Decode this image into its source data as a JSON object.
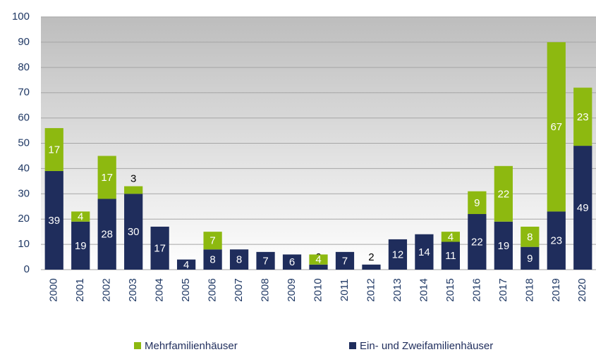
{
  "chart_data": {
    "type": "stacked-bar",
    "categories": [
      "2000",
      "2001",
      "2002",
      "2003",
      "2004",
      "2005",
      "2006",
      "2007",
      "2008",
      "2009",
      "2010",
      "2011",
      "2012",
      "2013",
      "2014",
      "2015",
      "2016",
      "2017",
      "2018",
      "2019",
      "2020"
    ],
    "series": [
      {
        "name": "Ein- und Zweifamilienhäuser",
        "color": "#1f2d5c",
        "values": [
          39,
          19,
          28,
          30,
          17,
          4,
          8,
          8,
          7,
          6,
          2,
          7,
          2,
          12,
          14,
          11,
          22,
          19,
          9,
          23,
          49
        ]
      },
      {
        "name": "Mehrfamilienhäuser",
        "color": "#8db910",
        "values": [
          17,
          4,
          17,
          3,
          null,
          null,
          7,
          null,
          null,
          null,
          4,
          null,
          null,
          null,
          null,
          4,
          9,
          22,
          8,
          67,
          23
        ]
      }
    ],
    "legend_order": [
      1,
      0
    ],
    "ylim": [
      0,
      100
    ],
    "yticks": [
      0,
      10,
      20,
      30,
      40,
      50,
      60,
      70,
      80,
      90,
      100
    ],
    "grid": true
  }
}
